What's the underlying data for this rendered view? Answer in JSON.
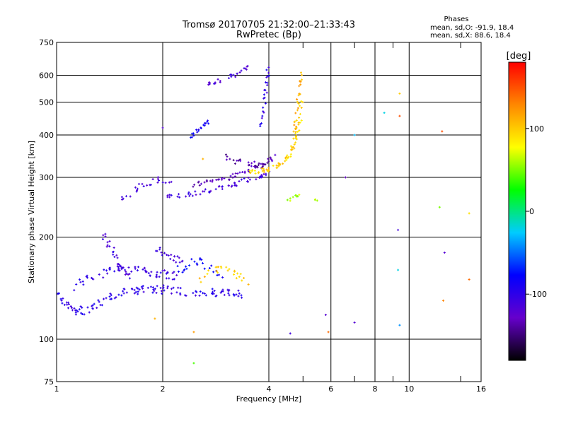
{
  "chart_data": {
    "type": "scatter",
    "title": "Tromsø 20170705 21:32:00–21:33:43",
    "subtitle": "RwPretec (Bp)",
    "xlabel": "Frequency [MHz]",
    "ylabel": "Stationary phase Virtual Height [km]",
    "x_scale": "log",
    "y_scale": "log",
    "xlim": [
      1,
      16
    ],
    "ylim": [
      75,
      750
    ],
    "x_ticks": [
      1,
      2,
      4,
      6,
      8,
      10,
      16
    ],
    "x_tick_labels": [
      "1",
      "2",
      "4",
      "6",
      "8",
      "10",
      "16"
    ],
    "x_grid_lines": [
      1,
      2,
      4,
      6,
      8,
      10,
      16
    ],
    "x_minor_ticks": [
      5,
      7,
      9,
      14
    ],
    "y_ticks": [
      75,
      100,
      200,
      300,
      400,
      500,
      600,
      750
    ],
    "y_tick_labels": [
      "75",
      "100",
      "200",
      "300",
      "400",
      "500",
      "600",
      "750"
    ],
    "grid": true,
    "phases_box": {
      "title": "Phases",
      "line_o": "mean, sd,O: -91.9, 18.4",
      "line_x": "mean, sd,X:  88.6, 18.4"
    },
    "colorbar": {
      "label": "[deg]",
      "range": [
        -180,
        180
      ],
      "ticks": [
        100,
        0,
        -100
      ],
      "tick_labels": [
        "100",
        "0",
        "-100"
      ],
      "colormap": [
        "#000000",
        "#6600cc",
        "#0000ff",
        "#00ccff",
        "#00ff00",
        "#ffff00",
        "#ff8800",
        "#ff0000"
      ]
    },
    "series": [
      {
        "component": "O",
        "traces": [
          {
            "x": [
              1.0,
              1.05,
              1.1,
              1.15,
              1.2,
              1.3,
              1.4,
              1.5,
              1.6,
              1.7,
              1.8,
              1.9,
              2.0,
              2.2,
              2.4,
              2.6,
              2.8,
              3.0,
              3.2,
              3.4
            ],
            "y": [
              135,
              128,
              123,
              121,
              122,
              126,
              132,
              136,
              138,
              140,
              141,
              141,
              140,
              139,
              138,
              138,
              137,
              136,
              136,
              135
            ],
            "phase": -100,
            "spread": 0.06,
            "density": 7
          },
          {
            "x": [
              1.1,
              1.2,
              1.3,
              1.4,
              1.5,
              1.6,
              1.7,
              1.8,
              1.9,
              2.0,
              2.1,
              2.2
            ],
            "y": [
              142,
              148,
              155,
              158,
              160,
              160,
              159,
              158,
              157,
              156,
              155,
              154
            ],
            "phase": -105,
            "spread": 0.06,
            "density": 6
          },
          {
            "x": [
              1.35,
              1.4,
              1.45,
              1.5,
              1.55,
              1.6
            ],
            "y": [
              205,
              192,
              180,
              168,
              158,
              150
            ],
            "phase": -110,
            "spread": 0.07,
            "density": 6
          },
          {
            "x": [
              1.9,
              2.0,
              2.1,
              2.2,
              2.3
            ],
            "y": [
              185,
              180,
              176,
              172,
              168
            ],
            "phase": -115,
            "spread": 0.05,
            "density": 5
          },
          {
            "x": [
              1.5,
              1.6,
              1.7,
              1.8,
              1.9,
              2.0,
              2.1
            ],
            "y": [
              255,
              265,
              280,
              290,
              295,
              292,
              285
            ],
            "phase": -112,
            "spread": 0.05,
            "density": 4
          },
          {
            "x": [
              2.0,
              2.2,
              2.4,
              2.6,
              2.8,
              3.0,
              3.2,
              3.4,
              3.6,
              3.8,
              4.0
            ],
            "y": [
              262,
              264,
              268,
              272,
              276,
              281,
              287,
              293,
              298,
              303,
              308
            ],
            "phase": -110,
            "spread": 0.03,
            "density": 6
          },
          {
            "x": [
              2.4,
              2.6,
              2.8,
              3.0,
              3.2,
              3.4,
              3.6,
              3.8,
              4.0,
              4.2
            ],
            "y": [
              285,
              288,
              292,
              297,
              303,
              310,
              318,
              327,
              336,
              345
            ],
            "phase": -130,
            "spread": 0.03,
            "density": 6
          },
          {
            "x": [
              3.0,
              3.2,
              3.4,
              3.6,
              3.8,
              3.95
            ],
            "y": [
              345,
              335,
              330,
              328,
              325,
              322
            ],
            "phase": -135,
            "spread": 0.04,
            "density": 5
          },
          {
            "x": [
              3.8,
              3.85,
              3.9,
              3.95,
              4.0
            ],
            "y": [
              420,
              470,
              520,
              580,
              640
            ],
            "phase": -100,
            "spread": 0.04,
            "density": 6
          },
          {
            "x": [
              2.6,
              2.8,
              3.0,
              3.2,
              3.4,
              3.5
            ],
            "y": [
              565,
              575,
              585,
              600,
              620,
              640
            ],
            "phase": -115,
            "spread": 0.03,
            "density": 5
          },
          {
            "x": [
              2.4,
              2.5,
              2.6,
              2.7
            ],
            "y": [
              395,
              410,
              425,
              440
            ],
            "phase": -85,
            "spread": 0.03,
            "density": 6
          },
          {
            "x": [
              2.2,
              2.3,
              2.4,
              2.5,
              2.6,
              2.8,
              3.0
            ],
            "y": [
              160,
              165,
              170,
              172,
              168,
              160,
              155
            ],
            "phase": -80,
            "spread": 0.07,
            "density": 4
          }
        ]
      },
      {
        "component": "X",
        "traces": [
          {
            "x": [
              3.5,
              3.7,
              3.9,
              4.1,
              4.3,
              4.5,
              4.6,
              4.7,
              4.8,
              4.9,
              4.95
            ],
            "y": [
              310,
              312,
              315,
              320,
              328,
              340,
              355,
              375,
              400,
              440,
              500
            ],
            "phase": 95,
            "spread": 0.03,
            "density": 7
          },
          {
            "x": [
              4.7,
              4.75,
              4.8,
              4.85,
              4.9,
              4.95
            ],
            "y": [
              380,
              420,
              470,
              520,
              570,
              620
            ],
            "phase": 110,
            "spread": 0.02,
            "density": 6
          },
          {
            "x": [
              2.5,
              2.7,
              2.9,
              3.1,
              3.3,
              3.5
            ],
            "y": [
              150,
              155,
              160,
              158,
              152,
              148
            ],
            "phase": 100,
            "spread": 0.06,
            "density": 5
          },
          {
            "x": [
              4.4,
              4.6,
              4.8,
              5.0,
              5.5
            ],
            "y": [
              255,
              260,
              265,
              262,
              258
            ],
            "phase": 60,
            "spread": 0.03,
            "density": 3
          }
        ]
      }
    ],
    "scattered_points": [
      {
        "x": 5.8,
        "y": 118,
        "phase": -120
      },
      {
        "x": 5.9,
        "y": 105,
        "phase": 140
      },
      {
        "x": 4.6,
        "y": 104,
        "phase": -110
      },
      {
        "x": 6.6,
        "y": 300,
        "phase": -130
      },
      {
        "x": 7.0,
        "y": 112,
        "phase": -120
      },
      {
        "x": 8.5,
        "y": 465,
        "phase": -20
      },
      {
        "x": 9.4,
        "y": 530,
        "phase": 100
      },
      {
        "x": 9.4,
        "y": 455,
        "phase": 150
      },
      {
        "x": 9.3,
        "y": 210,
        "phase": -110
      },
      {
        "x": 9.3,
        "y": 160,
        "phase": -20
      },
      {
        "x": 9.4,
        "y": 110,
        "phase": -40
      },
      {
        "x": 12.4,
        "y": 410,
        "phase": 150
      },
      {
        "x": 12.2,
        "y": 245,
        "phase": 50
      },
      {
        "x": 12.6,
        "y": 180,
        "phase": -120
      },
      {
        "x": 12.5,
        "y": 130,
        "phase": 130
      },
      {
        "x": 14.8,
        "y": 235,
        "phase": 90
      },
      {
        "x": 14.8,
        "y": 150,
        "phase": 140
      },
      {
        "x": 2.45,
        "y": 85,
        "phase": 40
      },
      {
        "x": 2.45,
        "y": 105,
        "phase": 120
      },
      {
        "x": 1.9,
        "y": 115,
        "phase": 110
      },
      {
        "x": 7.0,
        "y": 400,
        "phase": -30
      },
      {
        "x": 2.0,
        "y": 420,
        "phase": -120
      },
      {
        "x": 2.6,
        "y": 340,
        "phase": 110
      }
    ]
  }
}
